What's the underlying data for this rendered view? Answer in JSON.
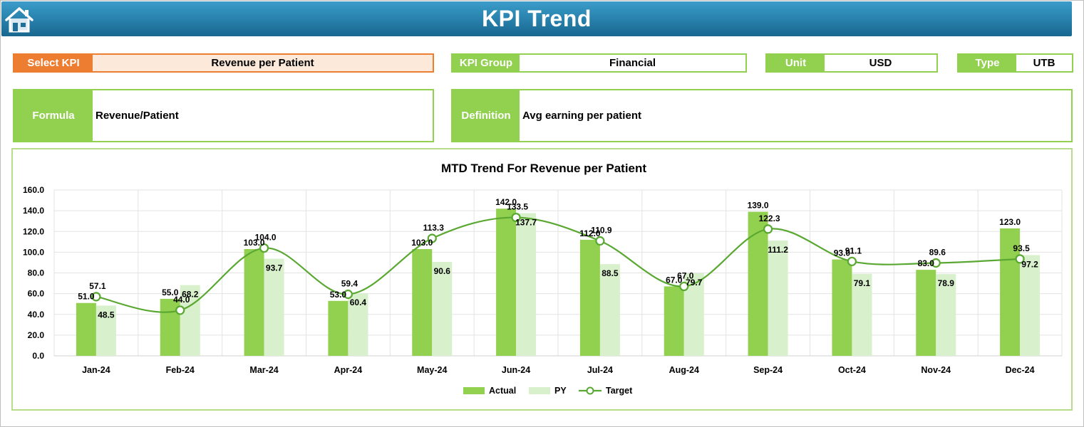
{
  "header": {
    "title": "KPI Trend",
    "home_icon": "home-icon"
  },
  "selectors": {
    "select_kpi": {
      "label": "Select KPI",
      "value": "Revenue per Patient"
    },
    "kpi_group": {
      "label": "KPI Group",
      "value": "Financial"
    },
    "unit": {
      "label": "Unit",
      "value": "USD"
    },
    "type": {
      "label": "Type",
      "value": "UTB"
    }
  },
  "details": {
    "formula": {
      "label": "Formula",
      "value": "Revenue/Patient"
    },
    "definition": {
      "label": "Definition",
      "value": "Avg earning per patient"
    }
  },
  "colors": {
    "banner": "#2a85b0",
    "accent_green": "#92d050",
    "select_orange": "#ed7d31",
    "py_color": "#d8f0cc",
    "target_line": "#5aa832"
  },
  "chart_data": {
    "type": "bar",
    "title": "MTD Trend For Revenue per Patient",
    "categories": [
      "Jan-24",
      "Feb-24",
      "Mar-24",
      "Apr-24",
      "May-24",
      "Jun-24",
      "Jul-24",
      "Aug-24",
      "Sep-24",
      "Oct-24",
      "Nov-24",
      "Dec-24"
    ],
    "series": [
      {
        "name": "Actual",
        "kind": "bar",
        "color": "#92d050",
        "values": [
          51.0,
          55.0,
          103.0,
          53.0,
          103.0,
          142.0,
          112.0,
          67.0,
          139.0,
          93.0,
          83.0,
          123.0
        ]
      },
      {
        "name": "PY",
        "kind": "bar",
        "color": "#d8f0cc",
        "values": [
          48.5,
          68.2,
          93.7,
          60.4,
          90.6,
          137.7,
          88.5,
          79.7,
          111.2,
          79.1,
          78.9,
          97.2
        ]
      },
      {
        "name": "Target",
        "kind": "line",
        "color": "#5aa832",
        "values": [
          57.1,
          44.0,
          104.0,
          59.4,
          113.3,
          133.5,
          110.9,
          67.0,
          122.3,
          91.1,
          89.6,
          93.5
        ]
      }
    ],
    "yticks": [
      "0.0",
      "20.0",
      "40.0",
      "60.0",
      "80.0",
      "100.0",
      "120.0",
      "140.0",
      "160.0"
    ],
    "ylim": [
      0,
      160
    ],
    "grid": true,
    "legend": "bottom-center"
  }
}
